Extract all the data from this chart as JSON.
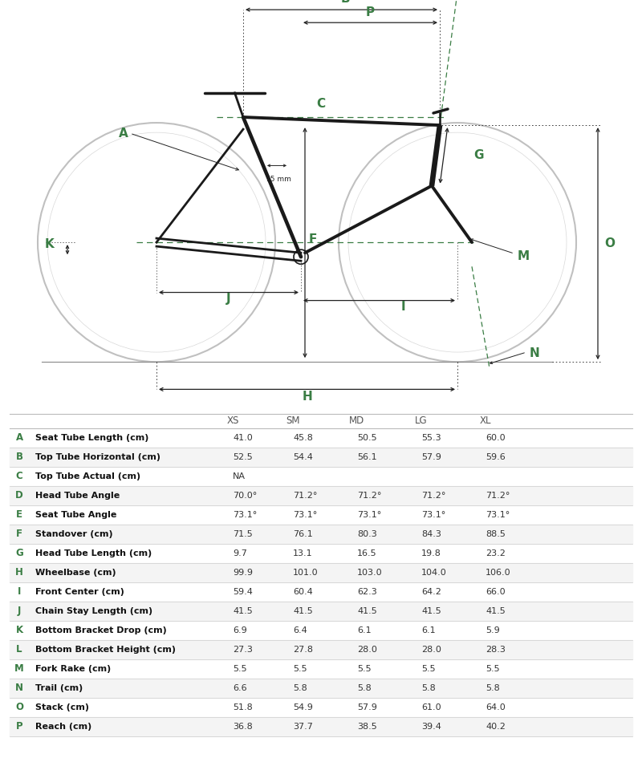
{
  "sizes": [
    "XS",
    "SM",
    "MD",
    "LG",
    "XL"
  ],
  "rows": [
    {
      "letter": "A",
      "label": "Seat Tube Length (cm)",
      "values": [
        "41.0",
        "45.8",
        "50.5",
        "55.3",
        "60.0"
      ]
    },
    {
      "letter": "B",
      "label": "Top Tube Horizontal (cm)",
      "values": [
        "52.5",
        "54.4",
        "56.1",
        "57.9",
        "59.6"
      ]
    },
    {
      "letter": "C",
      "label": "Top Tube Actual (cm)",
      "values": [
        "NA",
        "",
        "",
        "",
        ""
      ]
    },
    {
      "letter": "D",
      "label": "Head Tube Angle",
      "values": [
        "70.0°",
        "71.2°",
        "71.2°",
        "71.2°",
        "71.2°"
      ]
    },
    {
      "letter": "E",
      "label": "Seat Tube Angle",
      "values": [
        "73.1°",
        "73.1°",
        "73.1°",
        "73.1°",
        "73.1°"
      ]
    },
    {
      "letter": "F",
      "label": "Standover (cm)",
      "values": [
        "71.5",
        "76.1",
        "80.3",
        "84.3",
        "88.5"
      ]
    },
    {
      "letter": "G",
      "label": "Head Tube Length (cm)",
      "values": [
        "9.7",
        "13.1",
        "16.5",
        "19.8",
        "23.2"
      ]
    },
    {
      "letter": "H",
      "label": "Wheelbase (cm)",
      "values": [
        "99.9",
        "101.0",
        "103.0",
        "104.0",
        "106.0"
      ]
    },
    {
      "letter": "I",
      "label": "Front Center (cm)",
      "values": [
        "59.4",
        "60.4",
        "62.3",
        "64.2",
        "66.0"
      ]
    },
    {
      "letter": "J",
      "label": "Chain Stay Length (cm)",
      "values": [
        "41.5",
        "41.5",
        "41.5",
        "41.5",
        "41.5"
      ]
    },
    {
      "letter": "K",
      "label": "Bottom Bracket Drop (cm)",
      "values": [
        "6.9",
        "6.4",
        "6.1",
        "6.1",
        "5.9"
      ]
    },
    {
      "letter": "L",
      "label": "Bottom Bracket Height (cm)",
      "values": [
        "27.3",
        "27.8",
        "28.0",
        "28.0",
        "28.3"
      ]
    },
    {
      "letter": "M",
      "label": "Fork Rake (cm)",
      "values": [
        "5.5",
        "5.5",
        "5.5",
        "5.5",
        "5.5"
      ]
    },
    {
      "letter": "N",
      "label": "Trail (cm)",
      "values": [
        "6.6",
        "5.8",
        "5.8",
        "5.8",
        "5.8"
      ]
    },
    {
      "letter": "O",
      "label": "Stack (cm)",
      "values": [
        "51.8",
        "54.9",
        "57.9",
        "61.0",
        "64.0"
      ]
    },
    {
      "letter": "P",
      "label": "Reach (cm)",
      "values": [
        "36.8",
        "37.7",
        "38.5",
        "39.4",
        "40.2"
      ]
    }
  ],
  "green": "#3a7d44",
  "dark": "#222222",
  "gray": "#999999",
  "light_gray": "#cccccc",
  "row_alt": "#f0f0f0",
  "row_normal": "#ffffff",
  "header_gray": "#666666",
  "letter_green": "#3a7d44"
}
